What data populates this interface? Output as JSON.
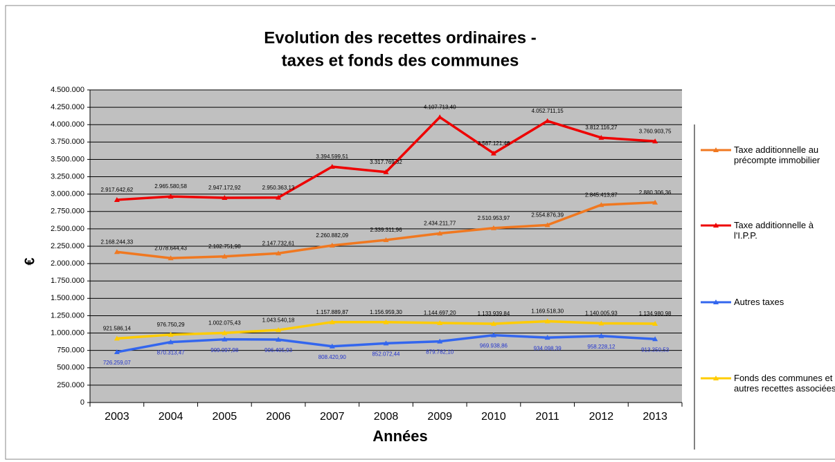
{
  "chart_data": {
    "type": "line",
    "title": [
      "Evolution des recettes ordinaires -",
      "taxes et fonds des communes"
    ],
    "x_label": "Années",
    "y_label": "€",
    "categories": [
      "2003",
      "2004",
      "2005",
      "2006",
      "2007",
      "2008",
      "2009",
      "2010",
      "2011",
      "2012",
      "2013"
    ],
    "ylim": [
      0,
      4500000
    ],
    "yticks": [
      0,
      {
        "value": 250000,
        "label": "250.000"
      },
      {
        "value": 500000,
        "label": "500.000"
      },
      {
        "value": 750000,
        "label": "750.000"
      },
      {
        "value": 1000000,
        "label": "1.000.000"
      },
      {
        "value": 1250000,
        "label": "1.250.000"
      },
      {
        "value": 1500000,
        "label": "1.500.000"
      },
      {
        "value": 1750000,
        "label": "1.750.000"
      },
      {
        "value": 2000000,
        "label": "2.000.000"
      },
      {
        "value": 2250000,
        "label": "2.250.000"
      },
      {
        "value": 2500000,
        "label": "2.500.000"
      },
      {
        "value": 2750000,
        "label": "2.750.000"
      },
      {
        "value": 3000000,
        "label": "3.000.000"
      },
      {
        "value": 3250000,
        "label": "3.250.000"
      },
      {
        "value": 3500000,
        "label": "3.500.000"
      },
      {
        "value": 3750000,
        "label": "3.750.000"
      },
      {
        "value": 4000000,
        "label": "4.000.000"
      },
      {
        "value": 4250000,
        "label": "4.250.000"
      },
      {
        "value": 4500000,
        "label": "4.500.000"
      }
    ],
    "grid": true,
    "legend": "right",
    "series": [
      {
        "name": "Taxe additionnelle au précompte immobilier",
        "color": "#f07820",
        "values": [
          2168244.33,
          2078644.43,
          2102751.98,
          2147732.61,
          2260882.09,
          2339311.96,
          2434211.77,
          2510953.97,
          2554876.39,
          2845413.87,
          2880306.36
        ],
        "value_labels": [
          "2.168.244,33",
          "2.078.644,43",
          "2.102.751,98",
          "2.147.732,61",
          "2.260.882,09",
          "2.339.311,96",
          "2.434.211,77",
          "2.510.953,97",
          "2.554.876,39",
          "2.845.413,87",
          "2.880.306,36"
        ]
      },
      {
        "name": "Taxe additionnelle à l'I.P.P.",
        "color": "#ee0000",
        "values": [
          2917642.62,
          2965580.58,
          2947172.92,
          2950363.13,
          3394599.51,
          3317769.32,
          4107713.4,
          3587121.46,
          4052711.15,
          3812116.27,
          3760903.75
        ],
        "value_labels": [
          "2.917.642,62",
          "2.965.580,58",
          "2.947.172,92",
          "2.950.363,13",
          "3.394.599,51",
          "3.317.769,32",
          "4.107.713,40",
          "3.587.121,46",
          "4.052.711,15",
          "3.812.116,27",
          "3.760.903,75"
        ]
      },
      {
        "name": "Autres taxes",
        "color": "#3366ee",
        "values": [
          726259.07,
          870313.47,
          909097.98,
          906405.93,
          808420.9,
          852072.44,
          879782.1,
          969938.86,
          934098.39,
          958228.12,
          913350.53
        ],
        "value_labels": [
          "726.259,07",
          "870.313,47",
          "909.097,98",
          "906.405,93",
          "808.420,90",
          "852.072,44",
          "879.782,10",
          "969.938,86",
          "934.098,39",
          "958.228,12",
          "913.350,53"
        ]
      },
      {
        "name": "Fonds des communes et autres recettes associées",
        "color": "#ffcc00",
        "values": [
          921586.14,
          976750.29,
          1002075.43,
          1043540.18,
          1157889.87,
          1156959.3,
          1144697.2,
          1133939.84,
          1169518.3,
          1140005.93,
          1134980.98
        ],
        "value_labels": [
          "921.586,14",
          "976.750,29",
          "1.002.075,43",
          "1.043.540,18",
          "1.157.889,87",
          "1.156.959,30",
          "1.144.697,20",
          "1.133.939,84",
          "1.169.518,30",
          "1.140.005,93",
          "1.134.980,98"
        ]
      }
    ]
  }
}
